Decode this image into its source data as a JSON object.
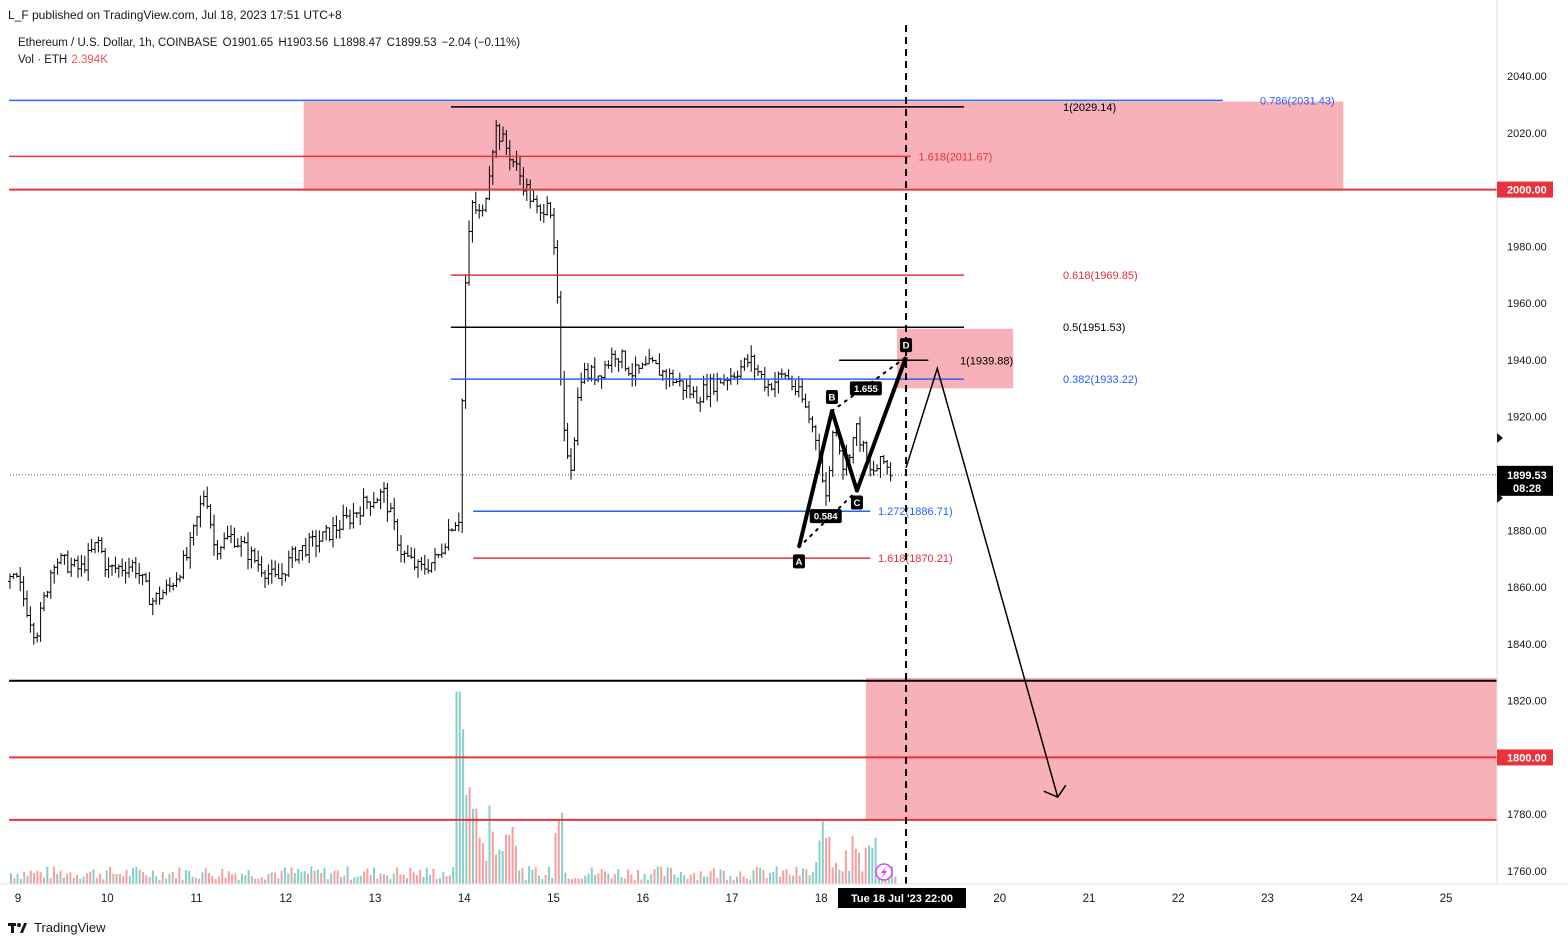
{
  "header": {
    "publish_line": "L_F published on TradingView.com, Jul 18, 2023 17:51 UTC+8",
    "symbol": "Ethereum / U.S. Dollar, 1h, COINBASE",
    "open": "O1901.65",
    "high": "H1903.56",
    "low": "L1898.47",
    "close": "C1899.53",
    "change": "−2.04 (−0.11%)",
    "vol_label": "Vol · ETH",
    "vol_value": "2.394K"
  },
  "footer": {
    "brand": "TradingView"
  },
  "colors": {
    "red": "#e8323c",
    "blue": "#2962ff",
    "black": "#000000",
    "zone": "#f7a3ad",
    "vol_up": "#26a69a",
    "vol_down": "#ef5350"
  },
  "chart_data": {
    "type": "candlestick-ohlc-bars",
    "title": "Ethereum / U.S. Dollar, 1h, COINBASE",
    "ylim": [
      1755,
      2048
    ],
    "y_ticks": [
      1760,
      1780,
      1800,
      1820,
      1840,
      1860,
      1880,
      1900,
      1920,
      1940,
      1960,
      1980,
      2000,
      2020,
      2040
    ],
    "x_ticks": [
      "9",
      "10",
      "11",
      "12",
      "13",
      "14",
      "15",
      "16",
      "17",
      "18",
      "19",
      "20",
      "21",
      "22",
      "23",
      "24",
      "25"
    ],
    "x_crosshair_label": "Tue 18 Jul '23   22:00",
    "current_price": "1899.53",
    "countdown": "08:28",
    "price_badges": [
      "2000.00",
      "1800.00"
    ],
    "price_path": [
      [
        9.0,
        1862
      ],
      [
        9.2,
        1843
      ],
      [
        9.4,
        1870
      ],
      [
        9.7,
        1866
      ],
      [
        9.9,
        1876
      ],
      [
        10.0,
        1866
      ],
      [
        10.3,
        1868
      ],
      [
        10.5,
        1855
      ],
      [
        10.7,
        1860
      ],
      [
        10.9,
        1871
      ],
      [
        11.1,
        1895
      ],
      [
        11.2,
        1874
      ],
      [
        11.4,
        1878
      ],
      [
        11.7,
        1868
      ],
      [
        11.9,
        1862
      ],
      [
        12.1,
        1872
      ],
      [
        12.4,
        1877
      ],
      [
        12.7,
        1884
      ],
      [
        12.9,
        1890
      ],
      [
        13.1,
        1893
      ],
      [
        13.3,
        1872
      ],
      [
        13.5,
        1866
      ],
      [
        13.7,
        1870
      ],
      [
        13.85,
        1882
      ],
      [
        13.95,
        1885
      ],
      [
        14.0,
        1960
      ],
      [
        14.08,
        1995
      ],
      [
        14.2,
        1990
      ],
      [
        14.35,
        2022
      ],
      [
        14.5,
        2013
      ],
      [
        14.7,
        2000
      ],
      [
        14.85,
        1990
      ],
      [
        14.95,
        2000
      ],
      [
        15.05,
        1958
      ],
      [
        15.1,
        1915
      ],
      [
        15.2,
        1903
      ],
      [
        15.3,
        1935
      ],
      [
        15.5,
        1935
      ],
      [
        15.7,
        1943
      ],
      [
        15.9,
        1935
      ],
      [
        16.1,
        1938
      ],
      [
        16.4,
        1932
      ],
      [
        16.6,
        1927
      ],
      [
        16.8,
        1932
      ],
      [
        17.0,
        1935
      ],
      [
        17.2,
        1940
      ],
      [
        17.4,
        1931
      ],
      [
        17.6,
        1935
      ],
      [
        17.8,
        1925
      ],
      [
        17.95,
        1912
      ],
      [
        18.05,
        1890
      ],
      [
        18.15,
        1920
      ],
      [
        18.25,
        1902
      ],
      [
        18.4,
        1916
      ],
      [
        18.55,
        1900
      ],
      [
        18.7,
        1904
      ],
      [
        18.8,
        1899.53
      ]
    ],
    "volume_spikes": [
      [
        13.95,
        72
      ],
      [
        14.05,
        40
      ],
      [
        15.05,
        30
      ],
      [
        18.05,
        25
      ]
    ],
    "horizontal_lines": [
      {
        "price": 2031.43,
        "color": "blue",
        "x_from": 8.9,
        "x_to": 22.5,
        "label": "0.786(2031.43)"
      },
      {
        "price": 2029.14,
        "color": "black",
        "x_from": 13.85,
        "x_to": 19.6,
        "label": "1(2029.14)"
      },
      {
        "price": 2011.67,
        "color": "red",
        "x_from": 8.9,
        "x_to": 19.0,
        "label": "1.618(2011.67)"
      },
      {
        "price": 2000.0,
        "color": "red",
        "x_from": 8.9,
        "x_to": 25.6,
        "label": "",
        "thick": true
      },
      {
        "price": 1969.85,
        "color": "red",
        "x_from": 13.85,
        "x_to": 19.6,
        "label": "0.618(1969.85)"
      },
      {
        "price": 1951.53,
        "color": "black",
        "x_from": 13.85,
        "x_to": 19.6,
        "label": "0.5(1951.53)"
      },
      {
        "price": 1939.88,
        "color": "black",
        "x_from": 18.2,
        "x_to": 19.2,
        "label": "1(1939.88)"
      },
      {
        "price": 1933.22,
        "color": "blue",
        "x_from": 13.85,
        "x_to": 19.6,
        "label": "0.382(1933.22)"
      },
      {
        "price": 1886.71,
        "color": "blue",
        "x_from": 14.1,
        "x_to": 18.55,
        "label": "1.272(1886.71)"
      },
      {
        "price": 1870.21,
        "color": "red",
        "x_from": 14.1,
        "x_to": 18.55,
        "label": "1.618(1870.21)"
      },
      {
        "price": 1827,
        "color": "black",
        "x_from": 8.9,
        "x_to": 25.6,
        "label": "",
        "thick": true
      },
      {
        "price": 1800.0,
        "color": "red",
        "x_from": 8.9,
        "x_to": 25.6,
        "label": "",
        "thick": true
      },
      {
        "price": 1778,
        "color": "red",
        "x_from": 8.9,
        "x_to": 25.6,
        "label": "",
        "thick": true
      }
    ],
    "zones": [
      {
        "x_from": 12.2,
        "x_to": 23.85,
        "p_from": 2000,
        "p_to": 2031
      },
      {
        "x_from": 18.85,
        "x_to": 20.15,
        "p_from": 1930,
        "p_to": 1951
      },
      {
        "x_from": 18.5,
        "x_to": 25.6,
        "p_from": 1778,
        "p_to": 1828
      }
    ],
    "abcd_pattern": {
      "points": [
        {
          "name": "A",
          "x": 17.75,
          "price": 1874
        },
        {
          "name": "B",
          "x": 18.12,
          "price": 1922
        },
        {
          "name": "C",
          "x": 18.4,
          "price": 1894
        },
        {
          "name": "D",
          "x": 18.95,
          "price": 1941
        }
      ],
      "ratios": [
        {
          "label": "0.584",
          "x": 18.05,
          "price": 1885
        },
        {
          "label": "1.655",
          "x": 18.5,
          "price": 1930
        }
      ]
    },
    "projection": [
      [
        18.95,
        1902
      ],
      [
        19.3,
        1937
      ],
      [
        20.65,
        1786
      ]
    ],
    "vertical_dashed_x": 18.95
  }
}
